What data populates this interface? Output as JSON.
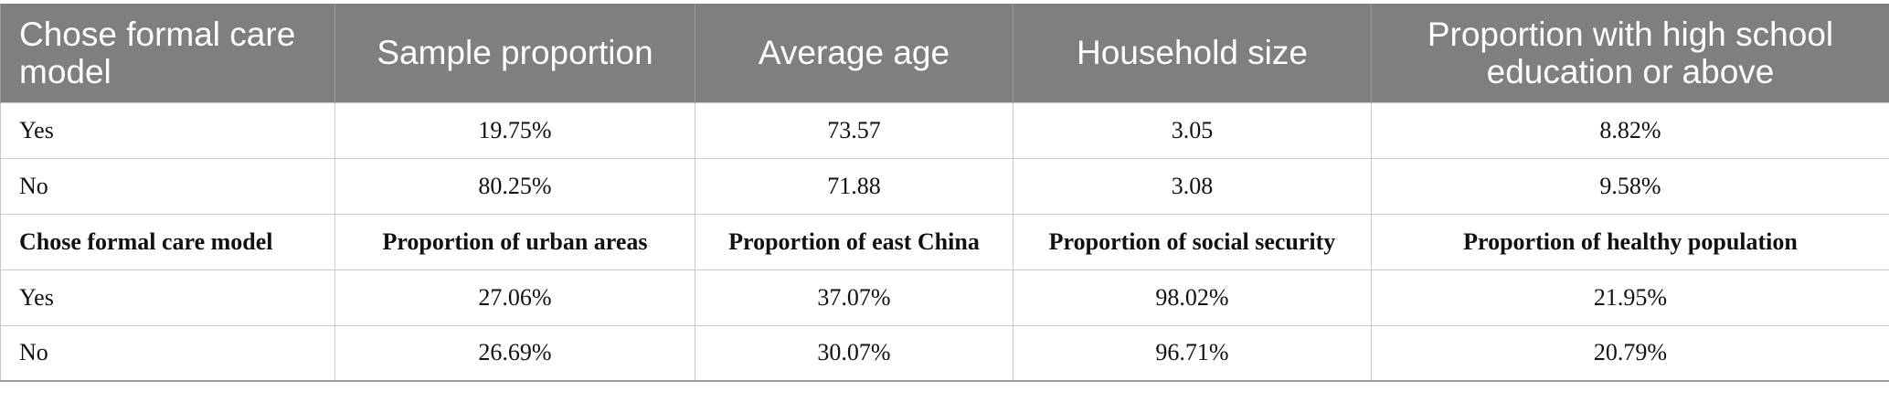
{
  "header": [
    "Chose formal care model",
    "Sample proportion",
    "Average age",
    "Household size",
    "Proportion with high school education or above"
  ],
  "rows_top": [
    [
      "Yes",
      "19.75%",
      "73.57",
      "3.05",
      "8.82%"
    ],
    [
      "No",
      "80.25%",
      "71.88",
      "3.08",
      "9.58%"
    ]
  ],
  "subheader": [
    "Chose formal care model",
    "Proportion of urban areas",
    "Proportion of east China",
    "Proportion of social security",
    "Proportion of healthy population"
  ],
  "rows_bottom": [
    [
      "Yes",
      "27.06%",
      "37.07%",
      "98.02%",
      "21.95%"
    ],
    [
      "No",
      "26.69%",
      "30.07%",
      "96.71%",
      "20.79%"
    ]
  ]
}
